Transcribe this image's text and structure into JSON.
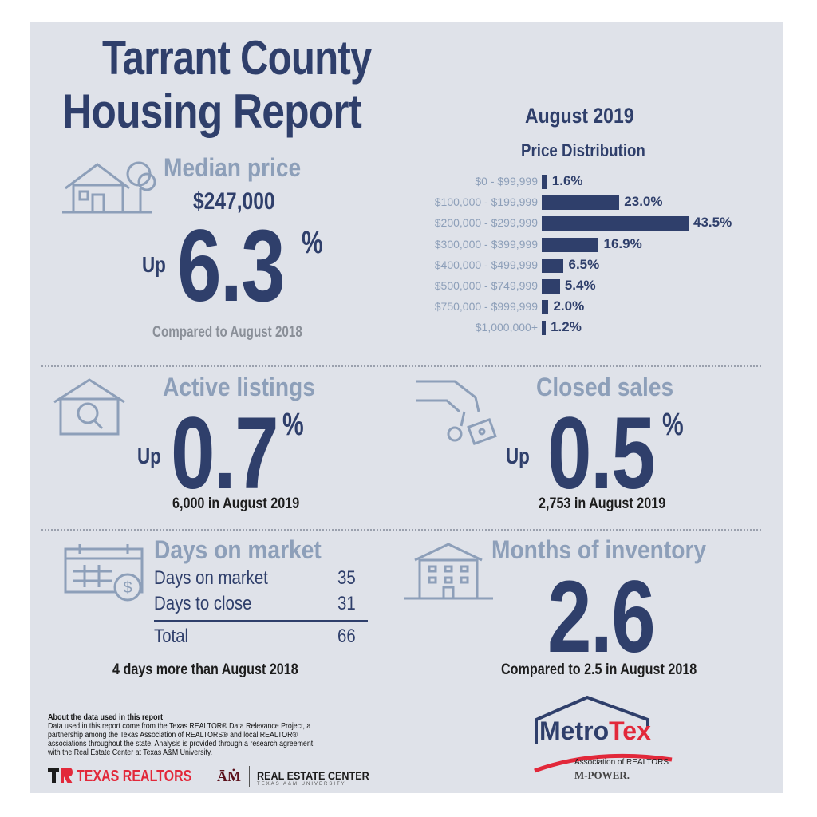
{
  "header": {
    "title_line1": "Tarrant County",
    "title_line2": "Housing Report"
  },
  "period": "August 2019",
  "median": {
    "title": "Median price",
    "price": "$247,000",
    "direction": "Up",
    "value": "6.3",
    "unit": "%",
    "compare": "Compared to August 2018"
  },
  "price_distribution": {
    "title": "Price Distribution",
    "chart_data": {
      "type": "bar",
      "title": "Price Distribution",
      "categories": [
        "$0 - $99,999",
        "$100,000 - $199,999",
        "$200,000 - $299,999",
        "$300,000 - $399,999",
        "$400,000 - $499,999",
        "$500,000 - $749,999",
        "$750,000 - $999,999",
        "$1,000,000+"
      ],
      "values": [
        1.6,
        23.0,
        43.5,
        16.9,
        6.5,
        5.4,
        2.0,
        1.2
      ],
      "labels": [
        "1.6%",
        "23.0%",
        "43.5%",
        "16.9%",
        "6.5%",
        "5.4%",
        "2.0%",
        "1.2%"
      ],
      "orientation": "horizontal"
    }
  },
  "active_listings": {
    "title": "Active listings",
    "direction": "Up",
    "value": "0.7",
    "unit": "%",
    "detail": "6,000 in August 2019"
  },
  "closed_sales": {
    "title": "Closed sales",
    "direction": "Up",
    "value": "0.5",
    "unit": "%",
    "detail": "2,753 in August 2019"
  },
  "days_on_market": {
    "title": "Days on market",
    "rows": [
      {
        "label": "Days on market",
        "value": "35"
      },
      {
        "label": "Days to close",
        "value": "31"
      }
    ],
    "total_label": "Total",
    "total_value": "66",
    "compare": "4 days more than August 2018"
  },
  "months_inventory": {
    "title": "Months of inventory",
    "value": "2.6",
    "compare": "Compared to 2.5 in August 2018"
  },
  "about": {
    "heading": "About the data used in this report",
    "lines": [
      "Data used in this report come from the Texas REALTOR® Data Relevance Project, a",
      "partnership among the Texas Association of REALTORS® and local REALTOR®",
      "associations throughout the state. Analysis is provided through a research agreement",
      "with the Real Estate Center at Texas A&M University."
    ]
  },
  "logos": {
    "texas_realtors": "TEXAS REALTORS",
    "real_estate_center": "REAL ESTATE CENTER",
    "rec_sub": "TEXAS A&M UNIVERSITY",
    "metrotex_metro": "Metro",
    "metrotex_tex": "Tex",
    "metrotex_sub": "Association of REALTORS",
    "mpower": "M-POWER."
  },
  "colors": {
    "navy": "#2f3f6b",
    "light_blue": "#8d9fb9",
    "red": "#e2283a",
    "panel": "#dfe2e9"
  }
}
